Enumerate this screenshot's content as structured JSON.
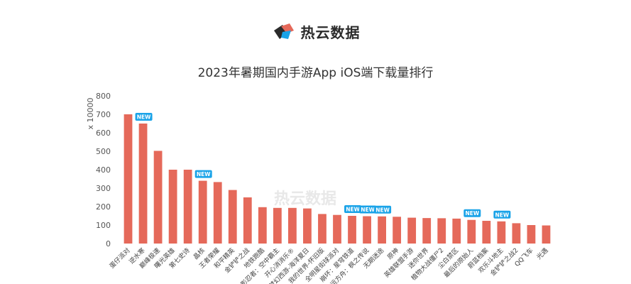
{
  "brand": {
    "name": "热云数据",
    "watermark": "热云数据"
  },
  "chart_data": {
    "type": "bar",
    "title": "2023年暑期国内手游App iOS端下载量排行",
    "ylabel": "x 10000",
    "ylim": [
      0,
      800
    ],
    "yticks": [
      0,
      100,
      200,
      300,
      400,
      500,
      600,
      700,
      800
    ],
    "bar_color": "#e5695a",
    "badge_color": "#1aa3e8",
    "badge_text": "NEW",
    "categories": [
      "蛋仔派对",
      "逆水寒",
      "巅峰极速",
      "曙光英雄",
      "第七史诗",
      "晶核",
      "王者荣耀",
      "和平精英",
      "金铲铲之战",
      "地铁跑酷",
      "火影忍者：空中霸主",
      "开心消消乐®",
      "梦幻西游-海洋夏日",
      "我的世界-怀旧版",
      "全明星街球派对",
      "崩坏：星穹铁道",
      "命运方舟：枫之传说",
      "无期迷途",
      "原神",
      "英雄联盟手游",
      "迷你世界",
      "植物大战僵尸2",
      "尘白禁区",
      "最后的原始人",
      "蔚蓝档案",
      "欢乐斗地主",
      "金铲铲之战2",
      "QQ飞车",
      "光遇"
    ],
    "values": [
      700,
      650,
      502,
      400,
      400,
      340,
      333,
      290,
      250,
      197,
      193,
      193,
      190,
      160,
      155,
      150,
      148,
      147,
      145,
      140,
      138,
      137,
      135,
      128,
      123,
      120,
      110,
      100,
      98
    ],
    "new_flags": [
      0,
      1,
      0,
      0,
      0,
      1,
      0,
      0,
      0,
      0,
      0,
      0,
      0,
      0,
      0,
      1,
      1,
      1,
      0,
      0,
      0,
      0,
      0,
      1,
      0,
      1,
      0,
      0,
      0
    ]
  }
}
